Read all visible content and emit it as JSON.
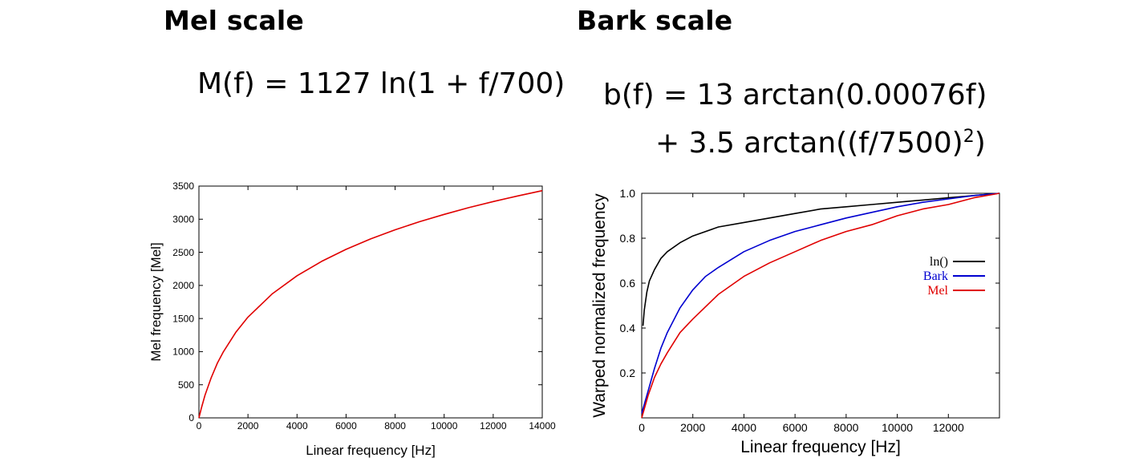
{
  "titles": {
    "left": "Mel scale",
    "right": "Bark scale"
  },
  "formulas": {
    "mel": "M(f) = 1127 ln(1 + f/700)",
    "bark_line1": "b(f) = 13 arctan(0.00076f)",
    "bark_line2": "+ 3.5 arctan((f/7500)",
    "bark_line2_exp": "2",
    "bark_line2_tail": ")"
  },
  "chart_data": [
    {
      "type": "line",
      "title": "",
      "xlabel": "Linear frequency [Hz]",
      "ylabel": "Mel frequency [Mel]",
      "xlim": [
        0,
        14000
      ],
      "ylim": [
        0,
        3500
      ],
      "xticks": [
        "0",
        "2000",
        "4000",
        "6000",
        "8000",
        "10000",
        "12000",
        "14000"
      ],
      "yticks": [
        "0",
        "500",
        "1000",
        "1500",
        "2000",
        "2500",
        "3000",
        "3500"
      ],
      "grid": false,
      "series": [
        {
          "color": "#e00000",
          "x": [
            0,
            100,
            250,
            500,
            750,
            1000,
            1500,
            2000,
            3000,
            4000,
            5000,
            6000,
            7000,
            8000,
            9000,
            10000,
            11000,
            12000,
            13000,
            14000
          ],
          "y": [
            0,
            150,
            344,
            607,
            825,
            1000,
            1291,
            1521,
            1876,
            2146,
            2363,
            2545,
            2702,
            2840,
            2962,
            3073,
            3174,
            3266,
            3351,
            3431
          ]
        }
      ]
    },
    {
      "type": "line",
      "title": "",
      "xlabel": "Linear frequency [Hz]",
      "ylabel": "Warped normalized frequency",
      "xlim": [
        0,
        14000
      ],
      "ylim": [
        0,
        1.0
      ],
      "xticks": [
        "0",
        "2000",
        "4000",
        "6000",
        "8000",
        "10000",
        "12000"
      ],
      "yticks": [
        "1.0",
        "0.8",
        "0.6",
        "0.4",
        "0.2"
      ],
      "grid": false,
      "legend_position": "right",
      "series": [
        {
          "name": "ln()",
          "color": "#000000",
          "x": [
            50,
            100,
            200,
            300,
            500,
            750,
            1000,
            1500,
            2000,
            3000,
            4000,
            5000,
            6000,
            7000,
            8000,
            9000,
            10000,
            11000,
            12000,
            13000,
            14000
          ],
          "y": [
            0.41,
            0.48,
            0.56,
            0.61,
            0.66,
            0.71,
            0.74,
            0.78,
            0.81,
            0.85,
            0.87,
            0.89,
            0.91,
            0.93,
            0.94,
            0.95,
            0.96,
            0.97,
            0.98,
            0.99,
            1.0
          ]
        },
        {
          "name": "Bark",
          "color": "#0000d0",
          "x": [
            0,
            250,
            500,
            750,
            1000,
            1500,
            2000,
            2500,
            3000,
            4000,
            5000,
            6000,
            7000,
            8000,
            9000,
            10000,
            11000,
            12000,
            13000,
            14000
          ],
          "y": [
            0.02,
            0.12,
            0.22,
            0.31,
            0.38,
            0.49,
            0.57,
            0.63,
            0.67,
            0.74,
            0.79,
            0.83,
            0.86,
            0.89,
            0.915,
            0.94,
            0.96,
            0.975,
            0.99,
            1.0
          ]
        },
        {
          "name": "Mel",
          "color": "#e00000",
          "x": [
            0,
            250,
            500,
            750,
            1000,
            1500,
            2000,
            3000,
            4000,
            5000,
            6000,
            7000,
            8000,
            9000,
            10000,
            11000,
            12000,
            13000,
            14000
          ],
          "y": [
            0.0,
            0.1,
            0.18,
            0.24,
            0.29,
            0.38,
            0.44,
            0.55,
            0.63,
            0.69,
            0.74,
            0.79,
            0.83,
            0.86,
            0.9,
            0.93,
            0.95,
            0.98,
            1.0
          ]
        }
      ]
    }
  ]
}
